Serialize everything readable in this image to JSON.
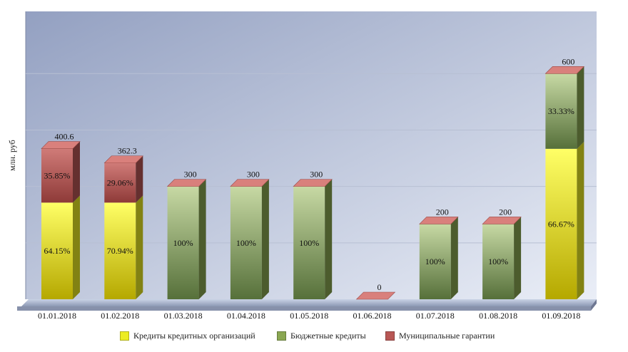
{
  "chart_data": {
    "type": "bar",
    "stacked": true,
    "three_d": true,
    "categories": [
      "01.01.2018",
      "01.02.2018",
      "01.03.2018",
      "01.04.2018",
      "01.05.2018",
      "01.06.2018",
      "01.07.2018",
      "01.08.2018",
      "01.09.2018"
    ],
    "series": [
      {
        "name": "Кредиты кредитных организаций",
        "color": "#ecec22",
        "values": [
          257,
          257,
          0,
          0,
          0,
          0,
          0,
          0,
          400
        ],
        "labels": [
          "64.15%",
          "70.94%",
          "",
          "",
          "",
          "",
          "",
          "",
          "66.67%"
        ]
      },
      {
        "name": "Бюджетные кредиты",
        "color": "#8aa752",
        "values": [
          0,
          0,
          300,
          300,
          300,
          0,
          200,
          200,
          200
        ],
        "labels": [
          "",
          "",
          "100%",
          "100%",
          "100%",
          "",
          "100%",
          "100%",
          "33.33%"
        ]
      },
      {
        "name": "Муниципальные гарантии",
        "color": "#b85755",
        "values": [
          143.6,
          105.3,
          0,
          0,
          0,
          0,
          0,
          0,
          0
        ],
        "labels": [
          "35.85%",
          "29.06%",
          "",
          "",
          "",
          "",
          "",
          "",
          ""
        ]
      }
    ],
    "totals": [
      "400.6",
      "362.3",
      "300",
      "300",
      "300",
      "0",
      "200",
      "200",
      "600"
    ],
    "ylabel": "млн. руб",
    "ylim": [
      0,
      750
    ],
    "grid": true,
    "legend_position": "bottom"
  }
}
